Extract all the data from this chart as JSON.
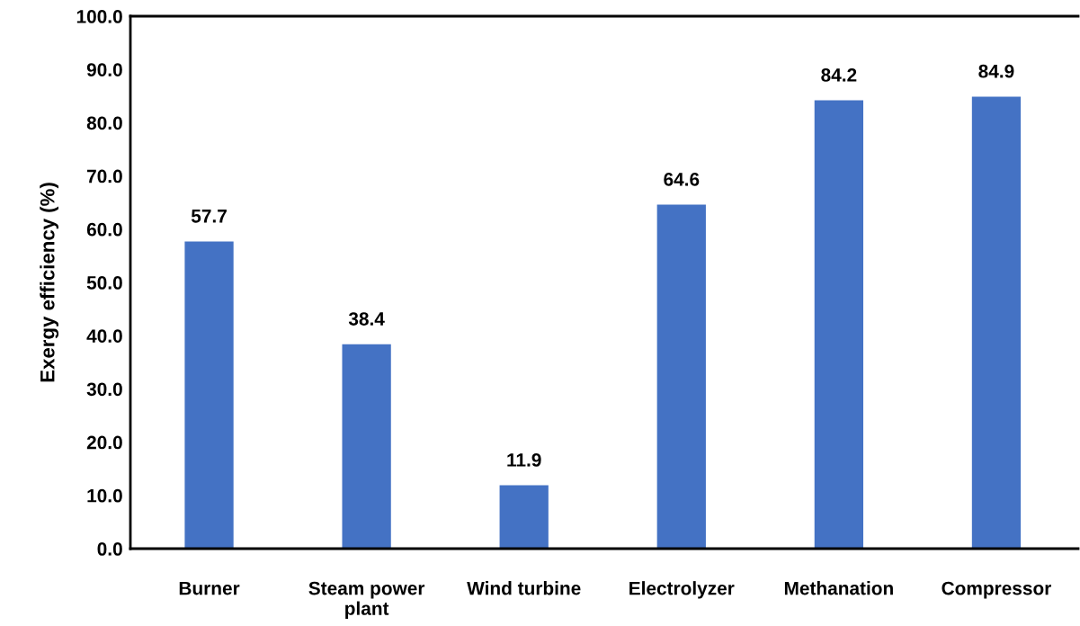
{
  "chart_data": {
    "type": "bar",
    "ylabel": "Exergy efficiency (%)",
    "categories": [
      "Burner",
      "Steam power\nplant",
      "Wind turbine",
      "Electrolyzer",
      "Methanation",
      "Compressor"
    ],
    "values": [
      57.7,
      38.4,
      11.9,
      64.6,
      84.2,
      84.9
    ],
    "color": "#4472c4",
    "ylim": [
      0,
      100
    ],
    "yticks": [
      {
        "value": 0,
        "label": "0.0"
      },
      {
        "value": 10,
        "label": "10.0"
      },
      {
        "value": 20,
        "label": "20.0"
      },
      {
        "value": 30,
        "label": "30.0"
      },
      {
        "value": 40,
        "label": "40.0"
      },
      {
        "value": 50,
        "label": "50.0"
      },
      {
        "value": 60,
        "label": "60.0"
      },
      {
        "value": 70,
        "label": "70.0"
      },
      {
        "value": 80,
        "label": "80.0"
      },
      {
        "value": 90,
        "label": "90.0"
      },
      {
        "value": 100,
        "label": "100.0"
      }
    ],
    "data_labels": true,
    "grid": false,
    "legend": false
  }
}
